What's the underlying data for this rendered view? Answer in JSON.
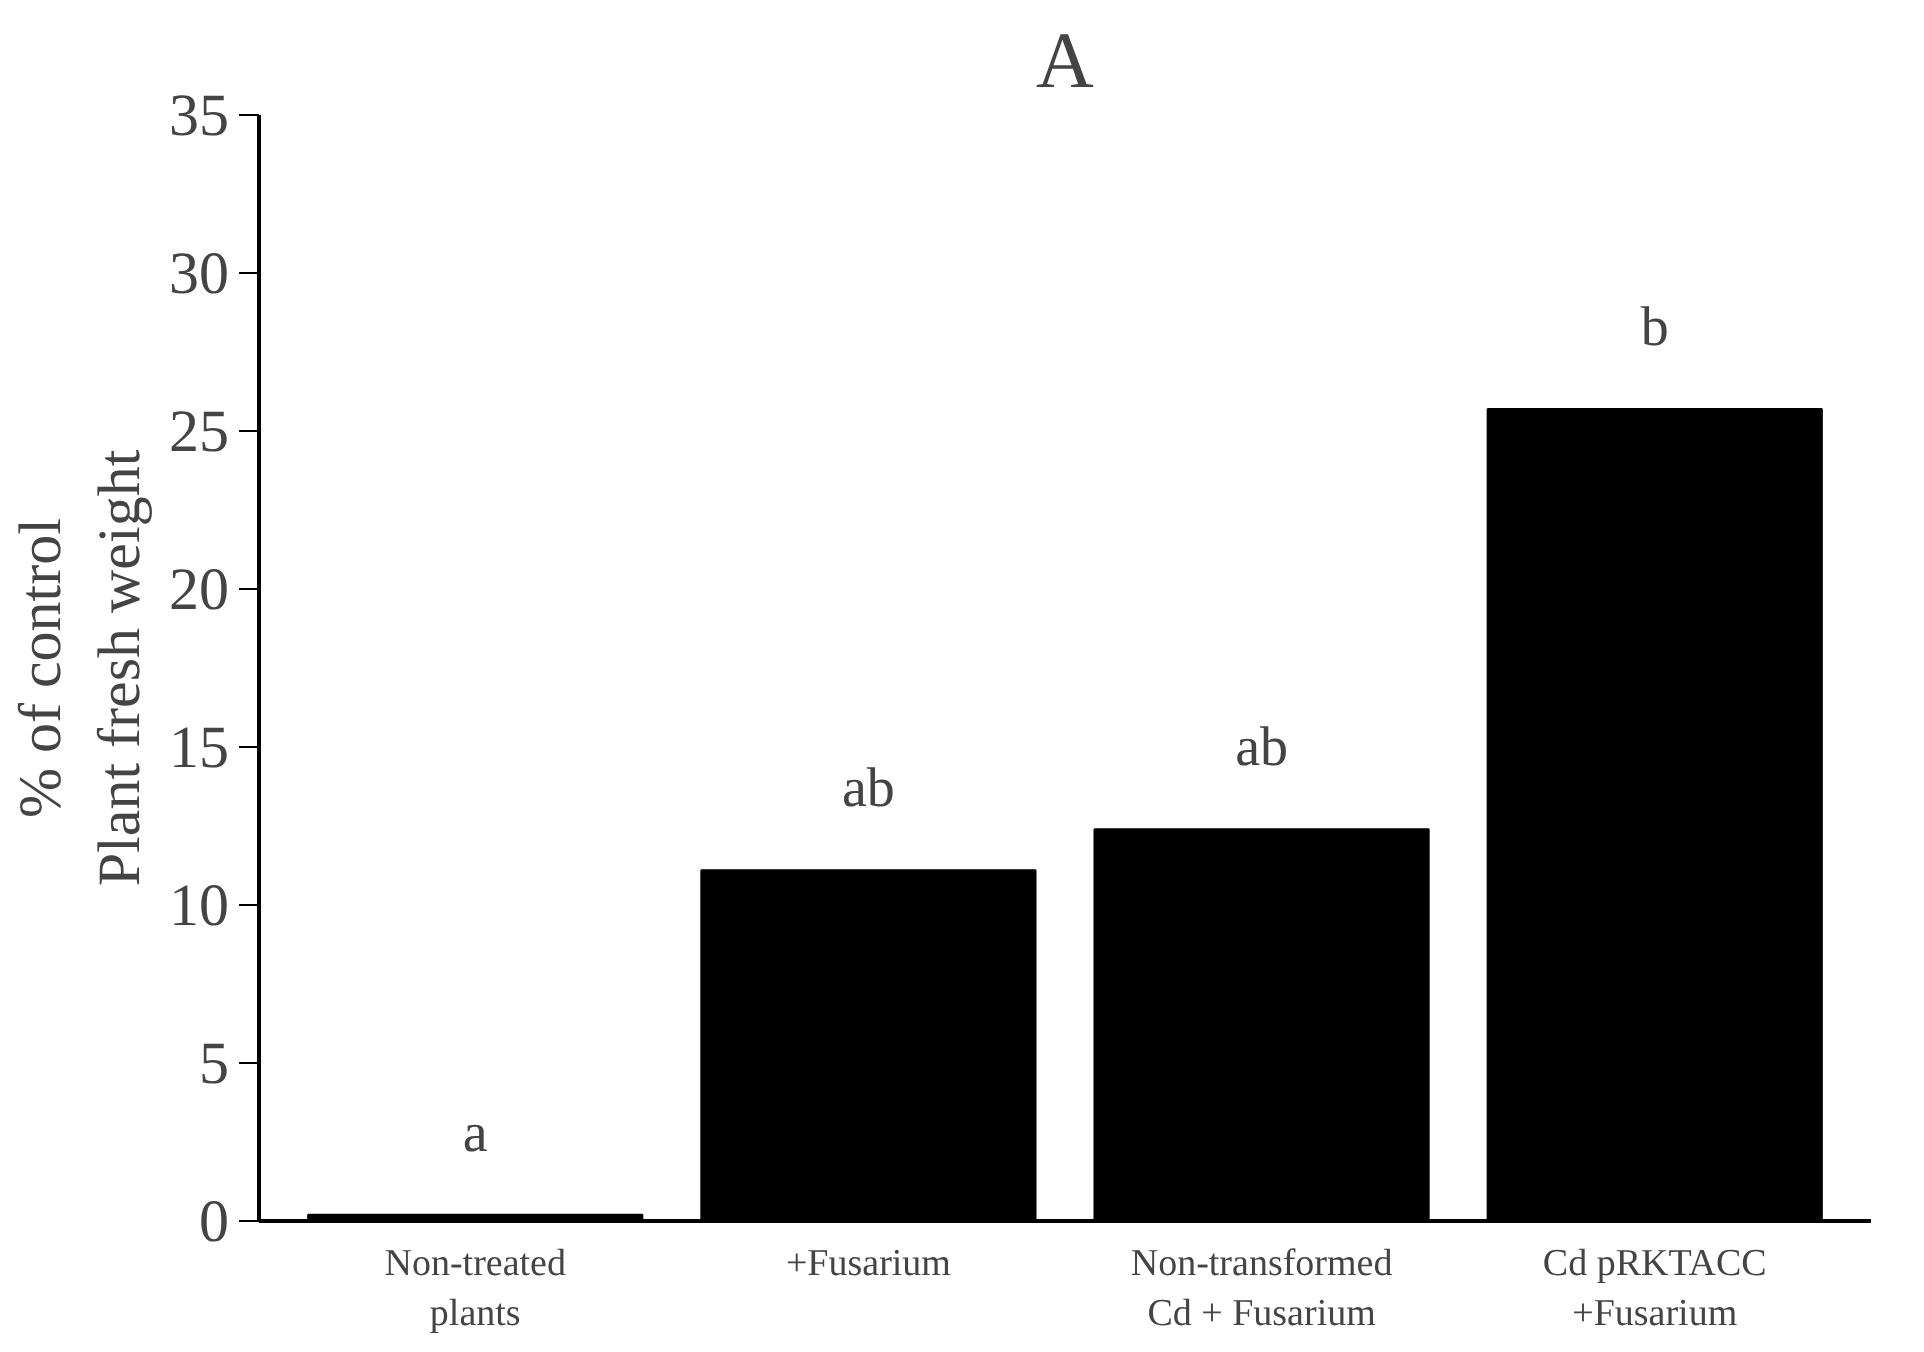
{
  "chart_data": {
    "type": "bar",
    "title": "A",
    "ylabel": "% of control\nPlant fresh weight",
    "categories": [
      "Non-treated\nplants",
      "+Fusarium",
      "Non-transformed\nCd + Fusarium",
      "Cd pRKTACC\n+Fusarium"
    ],
    "values": [
      0.2,
      11.1,
      12.4,
      25.7
    ],
    "color": "#000000",
    "ylim": [
      0,
      35
    ],
    "yticks": [
      0,
      5,
      10,
      15,
      20,
      25,
      30,
      35
    ],
    "annotations": [
      {
        "text": "a",
        "x": "Non-treated\nplants",
        "y": 0.2
      },
      {
        "text": "ab",
        "x": "+Fusarium",
        "y": 11.1
      },
      {
        "text": "ab",
        "x": "Non-transformed\nCd + Fusarium",
        "y": 12.4
      },
      {
        "text": "b",
        "x": "Cd pRKTACC\n+Fusarium",
        "y": 25.7
      }
    ],
    "grid": false
  }
}
